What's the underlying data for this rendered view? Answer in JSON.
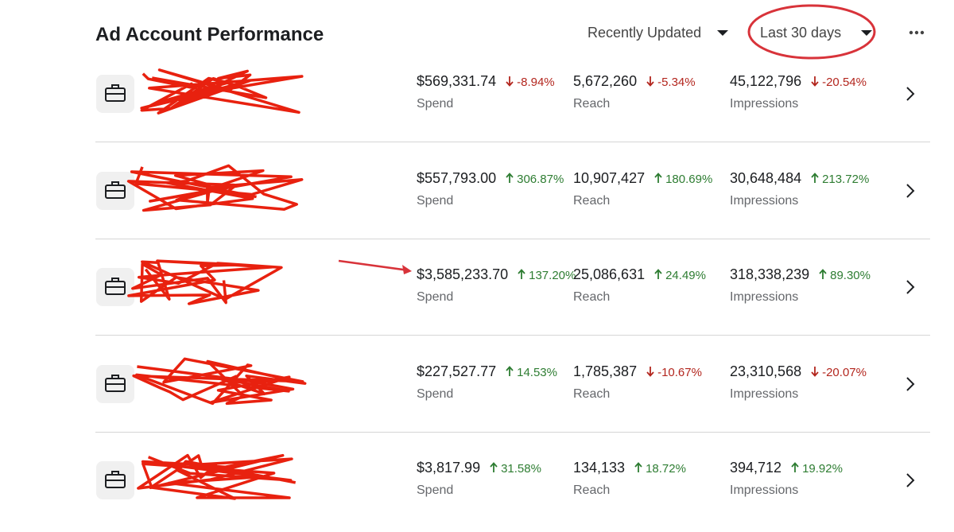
{
  "header": {
    "title": "Ad Account Performance",
    "sort": "Recently Updated",
    "range": "Last 30 days"
  },
  "rows": [
    {
      "metrics": [
        {
          "value": "$569,331.74",
          "change": "-8.94%",
          "direction": "down",
          "label": "Spend"
        },
        {
          "value": "5,672,260",
          "change": "-5.34%",
          "direction": "down",
          "label": "Reach"
        },
        {
          "value": "45,122,796",
          "change": "-20.54%",
          "direction": "down",
          "label": "Impressions"
        }
      ]
    },
    {
      "metrics": [
        {
          "value": "$557,793.00",
          "change": "306.87%",
          "direction": "up",
          "label": "Spend"
        },
        {
          "value": "10,907,427",
          "change": "180.69%",
          "direction": "up",
          "label": "Reach"
        },
        {
          "value": "30,648,484",
          "change": "213.72%",
          "direction": "up",
          "label": "Impressions"
        }
      ]
    },
    {
      "metrics": [
        {
          "value": "$3,585,233.70",
          "change": "137.20%",
          "direction": "up",
          "label": "Spend"
        },
        {
          "value": "25,086,631",
          "change": "24.49%",
          "direction": "up",
          "label": "Reach"
        },
        {
          "value": "318,338,239",
          "change": "89.30%",
          "direction": "up",
          "label": "Impressions"
        }
      ]
    },
    {
      "metrics": [
        {
          "value": "$227,527.77",
          "change": "14.53%",
          "direction": "up",
          "label": "Spend"
        },
        {
          "value": "1,785,387",
          "change": "-10.67%",
          "direction": "down",
          "label": "Reach"
        },
        {
          "value": "23,310,568",
          "change": "-20.07%",
          "direction": "down",
          "label": "Impressions"
        }
      ]
    },
    {
      "metrics": [
        {
          "value": "$3,817.99",
          "change": "31.58%",
          "direction": "up",
          "label": "Spend"
        },
        {
          "value": "134,133",
          "change": "18.72%",
          "direction": "up",
          "label": "Reach"
        },
        {
          "value": "394,712",
          "change": "19.92%",
          "direction": "up",
          "label": "Impressions"
        }
      ]
    }
  ]
}
